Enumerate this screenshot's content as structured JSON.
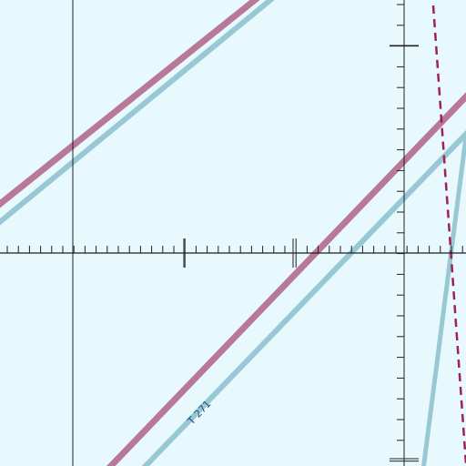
{
  "chart": {
    "background": "#e8f9fd",
    "colors": {
      "magenta_route": "#b87898",
      "blue_route": "#98c8d4",
      "boundary_dashed": "#a0205a",
      "grid_lines": "#202020"
    },
    "routes": [
      {
        "name": "T 271",
        "label": "T 271"
      }
    ],
    "icons": [
      "compass-rose-tick-ring"
    ]
  }
}
